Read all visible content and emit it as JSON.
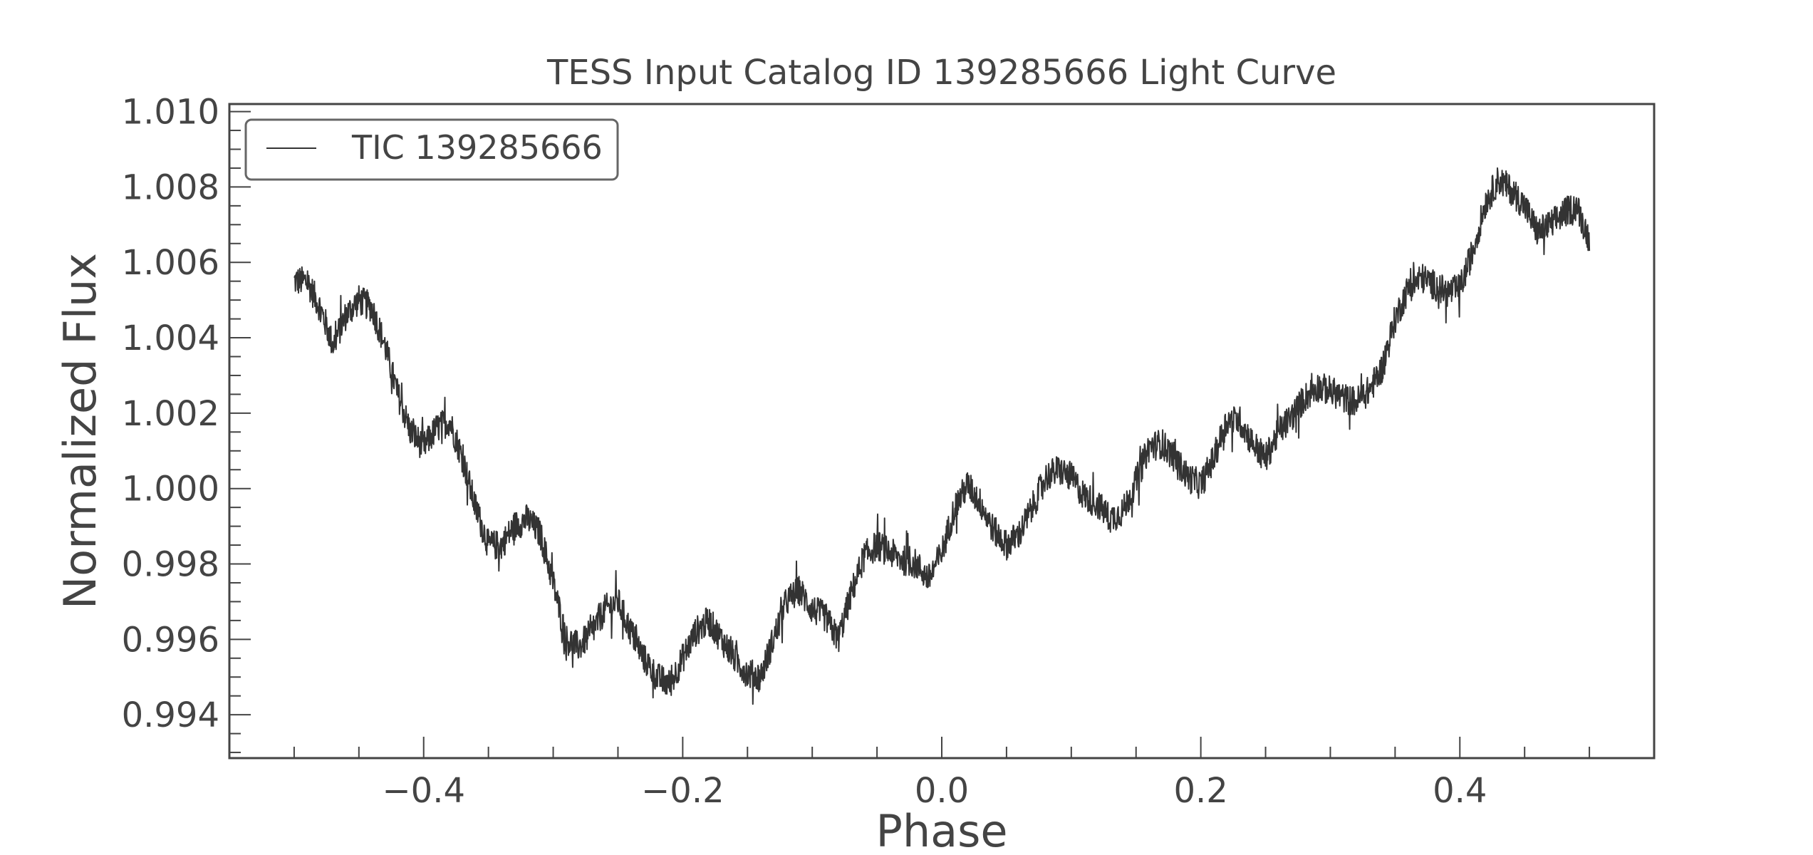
{
  "chart_data": {
    "type": "line",
    "title": "TESS Input Catalog ID 139285666 Light Curve",
    "xlabel": "Phase",
    "ylabel": "Normalized Flux",
    "xlim": [
      -0.55,
      0.55
    ],
    "ylim": [
      0.99285,
      1.0102
    ],
    "xticks": [
      -0.4,
      -0.2,
      0.0,
      0.2,
      0.4
    ],
    "xtick_labels": [
      "−0.4",
      "−0.2",
      "0.0",
      "0.2",
      "0.4"
    ],
    "yticks": [
      0.994,
      0.996,
      0.998,
      1.0,
      1.002,
      1.004,
      1.006,
      1.008,
      1.01
    ],
    "ytick_labels": [
      "0.994",
      "0.996",
      "0.998",
      "1.000",
      "1.002",
      "1.004",
      "1.006",
      "1.008",
      "1.010"
    ],
    "grid": false,
    "legend_position": "top-left",
    "line_color": "#333333",
    "series": [
      {
        "name": "TIC 139285666",
        "noise_amplitude": 0.0004,
        "trend": {
          "x": [
            -0.5,
            -0.49,
            -0.48,
            -0.47,
            -0.46,
            -0.45,
            -0.44,
            -0.43,
            -0.42,
            -0.41,
            -0.4,
            -0.39,
            -0.38,
            -0.37,
            -0.36,
            -0.35,
            -0.34,
            -0.33,
            -0.32,
            -0.31,
            -0.3,
            -0.29,
            -0.28,
            -0.27,
            -0.26,
            -0.25,
            -0.24,
            -0.23,
            -0.22,
            -0.21,
            -0.2,
            -0.19,
            -0.18,
            -0.17,
            -0.16,
            -0.15,
            -0.14,
            -0.13,
            -0.12,
            -0.11,
            -0.1,
            -0.09,
            -0.08,
            -0.07,
            -0.06,
            -0.05,
            -0.04,
            -0.03,
            -0.02,
            -0.01,
            0.0,
            0.01,
            0.02,
            0.03,
            0.04,
            0.05,
            0.06,
            0.07,
            0.08,
            0.09,
            0.1,
            0.11,
            0.12,
            0.13,
            0.14,
            0.15,
            0.16,
            0.17,
            0.18,
            0.19,
            0.2,
            0.21,
            0.22,
            0.23,
            0.24,
            0.25,
            0.26,
            0.27,
            0.28,
            0.29,
            0.3,
            0.31,
            0.32,
            0.33,
            0.34,
            0.35,
            0.36,
            0.37,
            0.38,
            0.39,
            0.4,
            0.41,
            0.42,
            0.43,
            0.44,
            0.45,
            0.46,
            0.47,
            0.48,
            0.49,
            0.5
          ],
          "y": [
            1.0055,
            1.0055,
            1.0048,
            1.0038,
            1.0046,
            1.005,
            1.0048,
            1.0038,
            1.0025,
            1.0015,
            1.0011,
            1.0016,
            1.0018,
            1.0008,
            0.9995,
            0.9985,
            0.9985,
            0.999,
            0.9992,
            0.9988,
            0.9975,
            0.996,
            0.9958,
            0.9962,
            0.9968,
            0.997,
            0.9962,
            0.9955,
            0.995,
            0.9948,
            0.9955,
            0.9962,
            0.9965,
            0.996,
            0.9955,
            0.9951,
            0.995,
            0.996,
            0.997,
            0.9973,
            0.9968,
            0.9966,
            0.996,
            0.9972,
            0.9982,
            0.9985,
            0.9983,
            0.9981,
            0.998,
            0.9976,
            0.9983,
            0.9995,
            1.0001,
            0.9996,
            0.9989,
            0.9985,
            0.9988,
            0.9995,
            1.0003,
            1.0005,
            1.0003,
            0.9998,
            0.9996,
            0.9992,
            0.9994,
            1.0002,
            1.0011,
            1.0012,
            1.0008,
            1.0003,
            1.0001,
            1.0008,
            1.0018,
            1.0018,
            1.0012,
            1.0008,
            1.0015,
            1.0019,
            1.0024,
            1.0027,
            1.0026,
            1.0024,
            1.0023,
            1.0026,
            1.0032,
            1.0045,
            1.0053,
            1.0056,
            1.0054,
            1.0052,
            1.0053,
            1.0063,
            1.0076,
            1.0082,
            1.0079,
            1.0075,
            1.0068,
            1.007,
            1.0073,
            1.0075,
            1.0066
          ]
        }
      }
    ]
  }
}
